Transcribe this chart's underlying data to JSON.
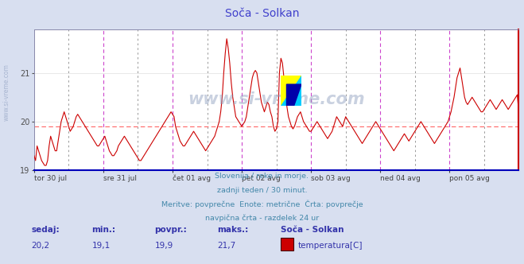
{
  "title": "Soča - Solkan",
  "title_color": "#4040cc",
  "bg_color": "#d8dff0",
  "plot_bg_color": "#ffffff",
  "line_color": "#cc0000",
  "avg_line_color": "#ff6666",
  "avg_value": 19.9,
  "ymin": 19.0,
  "ymax": 21.9,
  "yticks": [
    19,
    20,
    21
  ],
  "grid_color": "#e0e0e0",
  "vline_day_color": "#cc44cc",
  "vline_sub_color": "#888888",
  "watermark": "www.si-vreme.com",
  "watermark_color": "#8899bb",
  "watermark_alpha": 0.45,
  "text_lines": [
    "Slovenija / reke in morje.",
    "zadnji teden / 30 minut.",
    "Meritve: povprečne  Enote: metrične  Črta: povprečje",
    "navpična črta - razdelek 24 ur"
  ],
  "text_color": "#4488aa",
  "footer_labels": [
    "sedaj:",
    "min.:",
    "povpr.:",
    "maks.:"
  ],
  "footer_values": [
    "20,2",
    "19,1",
    "19,9",
    "21,7"
  ],
  "footer_station": "Soča - Solkan",
  "footer_legend": "temperatura[C]",
  "footer_color": "#3333aa",
  "legend_rect_color": "#cc0000",
  "x_labels": [
    "tor 30 jul",
    "sre 31 jul",
    "čet 01 avg",
    "pet 02 avg",
    "sob 03 avg",
    "ned 04 avg",
    "pon 05 avg"
  ],
  "n_days": 7,
  "temperature_data": [
    19.3,
    19.2,
    19.5,
    19.4,
    19.3,
    19.2,
    19.15,
    19.1,
    19.1,
    19.2,
    19.5,
    19.7,
    19.6,
    19.5,
    19.4,
    19.4,
    19.6,
    19.8,
    20.0,
    20.1,
    20.2,
    20.1,
    20.0,
    19.9,
    19.8,
    19.85,
    19.9,
    20.0,
    20.1,
    20.15,
    20.1,
    20.05,
    20.0,
    19.95,
    19.9,
    19.85,
    19.8,
    19.75,
    19.7,
    19.65,
    19.6,
    19.55,
    19.5,
    19.5,
    19.55,
    19.6,
    19.65,
    19.7,
    19.6,
    19.5,
    19.4,
    19.35,
    19.3,
    19.3,
    19.35,
    19.4,
    19.5,
    19.55,
    19.6,
    19.65,
    19.7,
    19.65,
    19.6,
    19.55,
    19.5,
    19.45,
    19.4,
    19.35,
    19.3,
    19.25,
    19.2,
    19.2,
    19.25,
    19.3,
    19.35,
    19.4,
    19.45,
    19.5,
    19.55,
    19.6,
    19.65,
    19.7,
    19.75,
    19.8,
    19.85,
    19.9,
    19.95,
    20.0,
    20.05,
    20.1,
    20.15,
    20.2,
    20.15,
    20.1,
    19.9,
    19.8,
    19.7,
    19.6,
    19.55,
    19.5,
    19.5,
    19.55,
    19.6,
    19.65,
    19.7,
    19.75,
    19.8,
    19.75,
    19.7,
    19.65,
    19.6,
    19.55,
    19.5,
    19.45,
    19.4,
    19.45,
    19.5,
    19.55,
    19.6,
    19.65,
    19.7,
    19.8,
    19.9,
    20.0,
    20.2,
    20.5,
    21.0,
    21.4,
    21.7,
    21.5,
    21.2,
    20.8,
    20.5,
    20.3,
    20.1,
    20.05,
    20.0,
    19.95,
    19.9,
    19.95,
    20.0,
    20.1,
    20.3,
    20.5,
    20.7,
    20.9,
    21.0,
    21.05,
    21.0,
    20.8,
    20.6,
    20.4,
    20.3,
    20.2,
    20.3,
    20.4,
    20.35,
    20.2,
    20.1,
    19.9,
    19.8,
    19.85,
    20.0,
    21.0,
    21.3,
    21.2,
    20.9,
    20.6,
    20.3,
    20.1,
    20.0,
    19.9,
    19.85,
    19.9,
    20.0,
    20.1,
    20.15,
    20.2,
    20.1,
    20.0,
    19.95,
    19.9,
    19.85,
    19.8,
    19.8,
    19.85,
    19.9,
    19.95,
    20.0,
    19.95,
    19.9,
    19.85,
    19.8,
    19.75,
    19.7,
    19.65,
    19.7,
    19.75,
    19.8,
    19.9,
    20.0,
    20.1,
    20.05,
    20.0,
    19.95,
    19.9,
    20.0,
    20.1,
    20.05,
    20.0,
    19.95,
    19.9,
    19.85,
    19.8,
    19.75,
    19.7,
    19.65,
    19.6,
    19.55,
    19.6,
    19.65,
    19.7,
    19.75,
    19.8,
    19.85,
    19.9,
    19.95,
    20.0,
    19.95,
    19.9,
    19.85,
    19.8,
    19.75,
    19.7,
    19.65,
    19.6,
    19.55,
    19.5,
    19.45,
    19.4,
    19.45,
    19.5,
    19.55,
    19.6,
    19.65,
    19.7,
    19.75,
    19.7,
    19.65,
    19.6,
    19.65,
    19.7,
    19.75,
    19.8,
    19.85,
    19.9,
    19.95,
    20.0,
    19.95,
    19.9,
    19.85,
    19.8,
    19.75,
    19.7,
    19.65,
    19.6,
    19.55,
    19.6,
    19.65,
    19.7,
    19.75,
    19.8,
    19.85,
    19.9,
    19.95,
    20.0,
    20.1,
    20.2,
    20.35,
    20.5,
    20.7,
    20.9,
    21.0,
    21.1,
    20.9,
    20.7,
    20.5,
    20.4,
    20.35,
    20.4,
    20.45,
    20.5,
    20.45,
    20.4,
    20.35,
    20.3,
    20.25,
    20.2,
    20.2,
    20.25,
    20.3,
    20.35,
    20.4,
    20.45,
    20.4,
    20.35,
    20.3,
    20.25,
    20.3,
    20.35,
    20.4,
    20.45,
    20.4,
    20.35,
    20.3,
    20.25,
    20.3,
    20.35,
    20.4,
    20.45,
    20.5,
    20.55,
    20.2
  ]
}
